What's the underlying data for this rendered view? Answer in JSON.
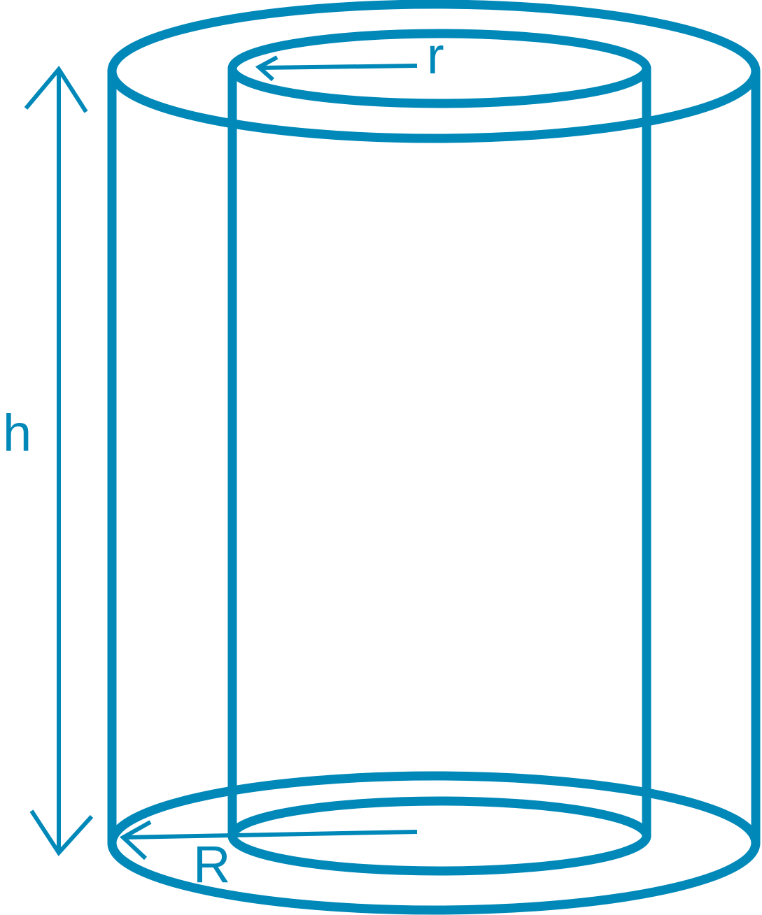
{
  "diagram": {
    "stroke_color": "#0088b8",
    "background_color": "#ffffff",
    "labels": {
      "height": "h",
      "inner_radius": "r",
      "outer_radius": "R"
    }
  }
}
